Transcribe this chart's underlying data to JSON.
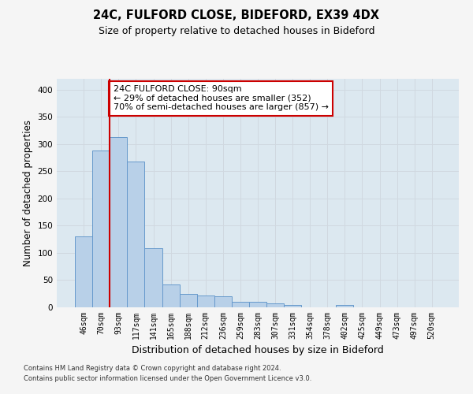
{
  "title1": "24C, FULFORD CLOSE, BIDEFORD, EX39 4DX",
  "title2": "Size of property relative to detached houses in Bideford",
  "xlabel": "Distribution of detached houses by size in Bideford",
  "ylabel": "Number of detached properties",
  "categories": [
    "46sqm",
    "70sqm",
    "93sqm",
    "117sqm",
    "141sqm",
    "165sqm",
    "188sqm",
    "212sqm",
    "236sqm",
    "259sqm",
    "283sqm",
    "307sqm",
    "331sqm",
    "354sqm",
    "378sqm",
    "402sqm",
    "425sqm",
    "449sqm",
    "473sqm",
    "497sqm",
    "520sqm"
  ],
  "values": [
    130,
    288,
    313,
    268,
    108,
    42,
    25,
    22,
    20,
    10,
    10,
    7,
    4,
    0,
    0,
    5,
    0,
    0,
    0,
    0,
    0
  ],
  "bar_color": "#b8d0e8",
  "bar_edge_color": "#6699cc",
  "vline_x": 2,
  "vline_color": "#cc0000",
  "annotation_text": "24C FULFORD CLOSE: 90sqm\n← 29% of detached houses are smaller (352)\n70% of semi-detached houses are larger (857) →",
  "annotation_box_color": "#ffffff",
  "annotation_box_edge": "#cc0000",
  "ylim": [
    0,
    420
  ],
  "yticks": [
    0,
    50,
    100,
    150,
    200,
    250,
    300,
    350,
    400
  ],
  "grid_color": "#d0d8e0",
  "bg_color": "#dce8f0",
  "fig_bg_color": "#f5f5f5",
  "footer1": "Contains HM Land Registry data © Crown copyright and database right 2024.",
  "footer2": "Contains public sector information licensed under the Open Government Licence v3.0.",
  "title1_fontsize": 10.5,
  "title2_fontsize": 9,
  "ylabel_fontsize": 8.5,
  "xlabel_fontsize": 9,
  "tick_fontsize": 7,
  "annotation_fontsize": 8,
  "footer_fontsize": 6
}
